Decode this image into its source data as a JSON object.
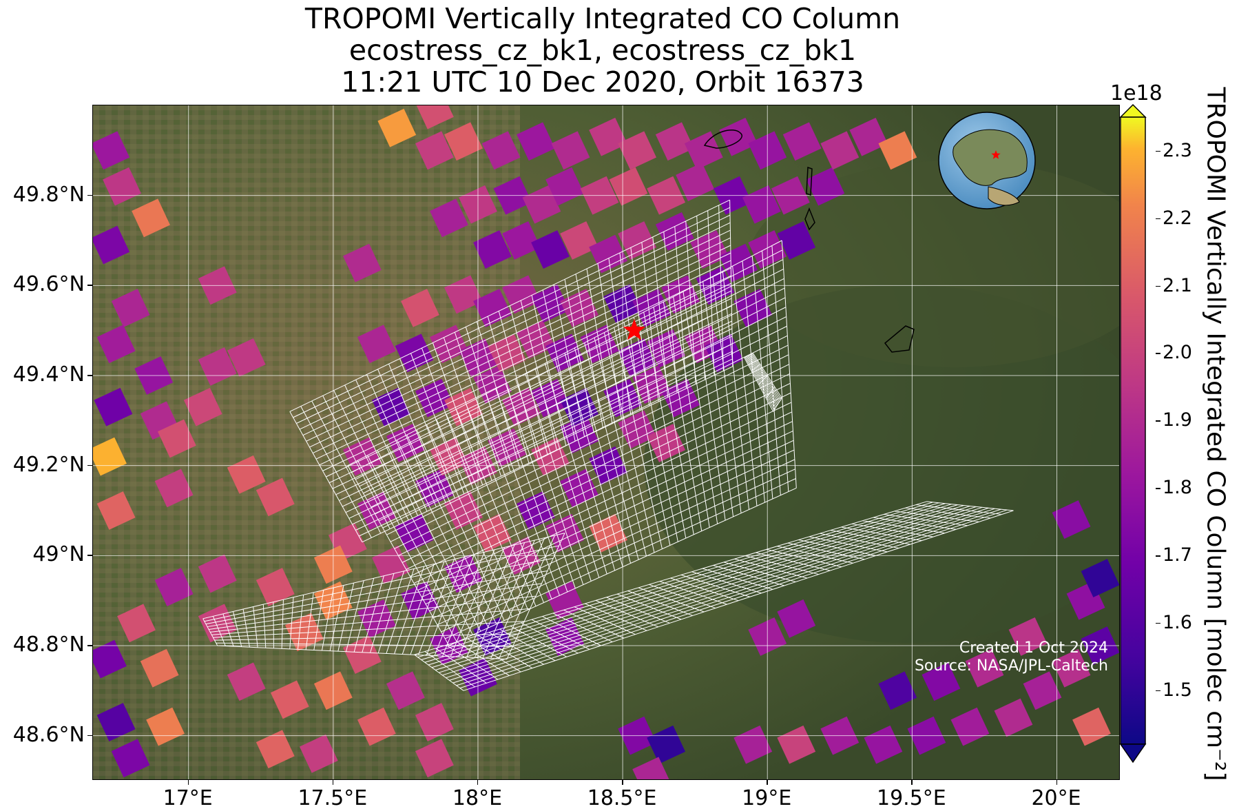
{
  "title": {
    "line1": "TROPOMI Vertically Integrated CO Column",
    "line2": "ecostress_cz_bk1, ecostress_cz_bk1",
    "line3": "11:21 UTC 10 Dec 2020, Orbit 16373"
  },
  "map": {
    "extent": {
      "lon_min": 16.67,
      "lon_max": 20.22,
      "lat_min": 48.5,
      "lat_max": 50.0
    },
    "lon_ticks": [
      {
        "value": 17.0,
        "label": "17°E"
      },
      {
        "value": 17.5,
        "label": "17.5°E"
      },
      {
        "value": 18.0,
        "label": "18°E"
      },
      {
        "value": 18.5,
        "label": "18.5°E"
      },
      {
        "value": 19.0,
        "label": "19°E"
      },
      {
        "value": 19.5,
        "label": "19.5°E"
      },
      {
        "value": 20.0,
        "label": "20°E"
      }
    ],
    "lat_ticks": [
      {
        "value": 48.6,
        "label": "48.6°N"
      },
      {
        "value": 48.8,
        "label": "48.8°N"
      },
      {
        "value": 49.0,
        "label": "49°N"
      },
      {
        "value": 49.2,
        "label": "49.2°N"
      },
      {
        "value": 49.4,
        "label": "49.4°N"
      },
      {
        "value": 49.6,
        "label": "49.6°N"
      },
      {
        "value": 49.8,
        "label": "49.8°N"
      }
    ],
    "target": {
      "lon": 18.54,
      "lat": 49.5,
      "color": "#ff0000"
    },
    "gridline_color": "#ffffff",
    "overlay_grid_color": "#ffffff",
    "credit_line1": "Created 1 Oct 2024",
    "credit_line2": "Source: NASA/JPL-Caltech",
    "inset_globe": {
      "target_color": "#ff0000"
    }
  },
  "colorbar": {
    "colormap": "plasma",
    "min": 1.42,
    "max": 2.35,
    "exponent_label": "1e18",
    "ticks": [
      {
        "value": 1.5,
        "label": "1.5"
      },
      {
        "value": 1.6,
        "label": "1.6"
      },
      {
        "value": 1.7,
        "label": "1.7"
      },
      {
        "value": 1.8,
        "label": "1.8"
      },
      {
        "value": 1.9,
        "label": "1.9"
      },
      {
        "value": 2.0,
        "label": "2.0"
      },
      {
        "value": 2.1,
        "label": "2.1"
      },
      {
        "value": 2.2,
        "label": "2.2"
      },
      {
        "value": 2.3,
        "label": "2.3"
      }
    ],
    "label": "TROPOMI Vertically Integrated CO Column [molec cm⁻²]",
    "extend": "both"
  },
  "co_pixels": [
    {
      "lon": 16.73,
      "lat": 49.9,
      "v": 1.82
    },
    {
      "lon": 16.77,
      "lat": 49.82,
      "v": 1.95
    },
    {
      "lon": 16.87,
      "lat": 49.75,
      "v": 2.18
    },
    {
      "lon": 16.73,
      "lat": 49.69,
      "v": 1.72
    },
    {
      "lon": 16.8,
      "lat": 49.55,
      "v": 1.88
    },
    {
      "lon": 16.75,
      "lat": 49.47,
      "v": 1.84
    },
    {
      "lon": 16.88,
      "lat": 49.4,
      "v": 1.8
    },
    {
      "lon": 16.74,
      "lat": 49.33,
      "v": 1.68
    },
    {
      "lon": 16.9,
      "lat": 49.3,
      "v": 1.9
    },
    {
      "lon": 16.72,
      "lat": 49.22,
      "v": 2.3
    },
    {
      "lon": 16.96,
      "lat": 49.26,
      "v": 2.05
    },
    {
      "lon": 17.05,
      "lat": 49.33,
      "v": 2.02
    },
    {
      "lon": 17.1,
      "lat": 49.42,
      "v": 1.94
    },
    {
      "lon": 17.2,
      "lat": 49.44,
      "v": 1.96
    },
    {
      "lon": 16.75,
      "lat": 49.1,
      "v": 2.12
    },
    {
      "lon": 16.95,
      "lat": 49.15,
      "v": 1.98
    },
    {
      "lon": 17.2,
      "lat": 49.18,
      "v": 2.1
    },
    {
      "lon": 17.1,
      "lat": 48.96,
      "v": 1.95
    },
    {
      "lon": 16.95,
      "lat": 48.93,
      "v": 1.86
    },
    {
      "lon": 16.82,
      "lat": 48.85,
      "v": 2.05
    },
    {
      "lon": 16.72,
      "lat": 48.77,
      "v": 1.7
    },
    {
      "lon": 16.9,
      "lat": 48.75,
      "v": 2.16
    },
    {
      "lon": 16.75,
      "lat": 48.63,
      "v": 1.6
    },
    {
      "lon": 16.92,
      "lat": 48.62,
      "v": 2.2
    },
    {
      "lon": 16.8,
      "lat": 48.55,
      "v": 1.72
    },
    {
      "lon": 17.1,
      "lat": 48.85,
      "v": 2.0
    },
    {
      "lon": 17.2,
      "lat": 48.72,
      "v": 1.98
    },
    {
      "lon": 17.3,
      "lat": 48.93,
      "v": 2.06
    },
    {
      "lon": 17.4,
      "lat": 48.83,
      "v": 2.14
    },
    {
      "lon": 17.5,
      "lat": 48.9,
      "v": 2.22
    },
    {
      "lon": 17.35,
      "lat": 48.68,
      "v": 2.1
    },
    {
      "lon": 17.5,
      "lat": 48.7,
      "v": 2.18
    },
    {
      "lon": 17.45,
      "lat": 48.56,
      "v": 1.98
    },
    {
      "lon": 17.3,
      "lat": 48.57,
      "v": 2.12
    },
    {
      "lon": 17.6,
      "lat": 48.78,
      "v": 2.05
    },
    {
      "lon": 17.65,
      "lat": 48.62,
      "v": 2.1
    },
    {
      "lon": 17.75,
      "lat": 48.7,
      "v": 1.92
    },
    {
      "lon": 17.85,
      "lat": 48.63,
      "v": 2.0
    },
    {
      "lon": 17.65,
      "lat": 48.86,
      "v": 1.84
    },
    {
      "lon": 17.8,
      "lat": 48.9,
      "v": 1.75
    },
    {
      "lon": 17.9,
      "lat": 48.8,
      "v": 1.78
    },
    {
      "lon": 18.0,
      "lat": 48.73,
      "v": 1.66
    },
    {
      "lon": 18.05,
      "lat": 48.82,
      "v": 1.58
    },
    {
      "lon": 17.95,
      "lat": 48.96,
      "v": 1.8
    },
    {
      "lon": 17.7,
      "lat": 48.98,
      "v": 1.96
    },
    {
      "lon": 17.55,
      "lat": 49.03,
      "v": 2.02
    },
    {
      "lon": 17.65,
      "lat": 49.1,
      "v": 1.86
    },
    {
      "lon": 17.78,
      "lat": 49.05,
      "v": 1.74
    },
    {
      "lon": 17.85,
      "lat": 49.15,
      "v": 1.78
    },
    {
      "lon": 17.95,
      "lat": 49.1,
      "v": 1.98
    },
    {
      "lon": 18.05,
      "lat": 49.05,
      "v": 2.06
    },
    {
      "lon": 18.15,
      "lat": 49.0,
      "v": 1.92
    },
    {
      "lon": 18.2,
      "lat": 49.1,
      "v": 1.72
    },
    {
      "lon": 18.3,
      "lat": 49.05,
      "v": 1.86
    },
    {
      "lon": 18.35,
      "lat": 49.15,
      "v": 1.8
    },
    {
      "lon": 18.3,
      "lat": 48.9,
      "v": 1.84
    },
    {
      "lon": 18.45,
      "lat": 49.05,
      "v": 2.12
    },
    {
      "lon": 17.6,
      "lat": 49.22,
      "v": 1.9
    },
    {
      "lon": 17.75,
      "lat": 49.25,
      "v": 1.84
    },
    {
      "lon": 17.9,
      "lat": 49.22,
      "v": 2.02
    },
    {
      "lon": 18.0,
      "lat": 49.2,
      "v": 1.94
    },
    {
      "lon": 18.1,
      "lat": 49.24,
      "v": 1.88
    },
    {
      "lon": 18.25,
      "lat": 49.22,
      "v": 2.0
    },
    {
      "lon": 18.35,
      "lat": 49.27,
      "v": 1.76
    },
    {
      "lon": 18.45,
      "lat": 49.2,
      "v": 1.68
    },
    {
      "lon": 18.55,
      "lat": 49.28,
      "v": 1.88
    },
    {
      "lon": 18.65,
      "lat": 49.25,
      "v": 1.96
    },
    {
      "lon": 17.7,
      "lat": 49.33,
      "v": 1.64
    },
    {
      "lon": 17.85,
      "lat": 49.35,
      "v": 1.76
    },
    {
      "lon": 17.95,
      "lat": 49.33,
      "v": 2.05
    },
    {
      "lon": 18.05,
      "lat": 49.38,
      "v": 1.86
    },
    {
      "lon": 18.15,
      "lat": 49.33,
      "v": 1.9
    },
    {
      "lon": 18.25,
      "lat": 49.35,
      "v": 1.78
    },
    {
      "lon": 18.35,
      "lat": 49.33,
      "v": 1.6
    },
    {
      "lon": 18.5,
      "lat": 49.35,
      "v": 1.72
    },
    {
      "lon": 18.6,
      "lat": 49.38,
      "v": 1.84
    },
    {
      "lon": 18.7,
      "lat": 49.35,
      "v": 1.78
    },
    {
      "lon": 17.78,
      "lat": 49.45,
      "v": 1.72
    },
    {
      "lon": 17.9,
      "lat": 49.47,
      "v": 1.9
    },
    {
      "lon": 18.0,
      "lat": 49.44,
      "v": 1.84
    },
    {
      "lon": 18.1,
      "lat": 49.45,
      "v": 2.0
    },
    {
      "lon": 18.2,
      "lat": 49.48,
      "v": 1.92
    },
    {
      "lon": 18.3,
      "lat": 49.45,
      "v": 1.76
    },
    {
      "lon": 18.42,
      "lat": 49.47,
      "v": 1.8
    },
    {
      "lon": 18.55,
      "lat": 49.44,
      "v": 1.74
    },
    {
      "lon": 18.65,
      "lat": 49.46,
      "v": 1.8
    },
    {
      "lon": 18.78,
      "lat": 49.47,
      "v": 1.84
    },
    {
      "lon": 18.85,
      "lat": 49.45,
      "v": 1.7
    },
    {
      "lon": 17.65,
      "lat": 49.47,
      "v": 1.88
    },
    {
      "lon": 17.8,
      "lat": 49.55,
      "v": 2.06
    },
    {
      "lon": 17.95,
      "lat": 49.58,
      "v": 1.96
    },
    {
      "lon": 18.05,
      "lat": 49.55,
      "v": 1.82
    },
    {
      "lon": 18.15,
      "lat": 49.58,
      "v": 1.88
    },
    {
      "lon": 18.25,
      "lat": 49.56,
      "v": 1.76
    },
    {
      "lon": 18.35,
      "lat": 49.55,
      "v": 1.9
    },
    {
      "lon": 18.5,
      "lat": 49.56,
      "v": 1.62
    },
    {
      "lon": 18.6,
      "lat": 49.55,
      "v": 1.76
    },
    {
      "lon": 18.7,
      "lat": 49.58,
      "v": 1.82
    },
    {
      "lon": 18.82,
      "lat": 49.6,
      "v": 1.72
    },
    {
      "lon": 18.95,
      "lat": 49.55,
      "v": 1.74
    },
    {
      "lon": 17.6,
      "lat": 49.65,
      "v": 1.9
    },
    {
      "lon": 18.05,
      "lat": 49.68,
      "v": 1.74
    },
    {
      "lon": 18.15,
      "lat": 49.7,
      "v": 1.82
    },
    {
      "lon": 18.25,
      "lat": 49.68,
      "v": 1.66
    },
    {
      "lon": 18.35,
      "lat": 49.7,
      "v": 2.02
    },
    {
      "lon": 18.45,
      "lat": 49.67,
      "v": 1.84
    },
    {
      "lon": 18.55,
      "lat": 49.7,
      "v": 1.94
    },
    {
      "lon": 18.68,
      "lat": 49.72,
      "v": 1.8
    },
    {
      "lon": 18.8,
      "lat": 49.68,
      "v": 1.86
    },
    {
      "lon": 18.9,
      "lat": 49.65,
      "v": 1.76
    },
    {
      "lon": 19.0,
      "lat": 49.68,
      "v": 1.82
    },
    {
      "lon": 19.1,
      "lat": 49.7,
      "v": 1.64
    },
    {
      "lon": 17.9,
      "lat": 49.75,
      "v": 1.86
    },
    {
      "lon": 18.0,
      "lat": 49.78,
      "v": 1.96
    },
    {
      "lon": 18.12,
      "lat": 49.8,
      "v": 1.78
    },
    {
      "lon": 18.22,
      "lat": 49.78,
      "v": 1.9
    },
    {
      "lon": 18.3,
      "lat": 49.82,
      "v": 1.84
    },
    {
      "lon": 18.42,
      "lat": 49.8,
      "v": 1.98
    },
    {
      "lon": 18.52,
      "lat": 49.82,
      "v": 2.04
    },
    {
      "lon": 18.65,
      "lat": 49.8,
      "v": 2.0
    },
    {
      "lon": 18.75,
      "lat": 49.83,
      "v": 1.88
    },
    {
      "lon": 18.88,
      "lat": 49.8,
      "v": 1.7
    },
    {
      "lon": 18.98,
      "lat": 49.78,
      "v": 1.8
    },
    {
      "lon": 19.08,
      "lat": 49.8,
      "v": 1.86
    },
    {
      "lon": 19.2,
      "lat": 49.82,
      "v": 1.78
    },
    {
      "lon": 17.85,
      "lat": 49.9,
      "v": 1.98
    },
    {
      "lon": 17.95,
      "lat": 49.92,
      "v": 2.1
    },
    {
      "lon": 18.08,
      "lat": 49.9,
      "v": 1.88
    },
    {
      "lon": 18.2,
      "lat": 49.92,
      "v": 1.82
    },
    {
      "lon": 18.32,
      "lat": 49.9,
      "v": 1.9
    },
    {
      "lon": 18.45,
      "lat": 49.93,
      "v": 1.96
    },
    {
      "lon": 18.55,
      "lat": 49.9,
      "v": 2.0
    },
    {
      "lon": 18.68,
      "lat": 49.92,
      "v": 1.94
    },
    {
      "lon": 18.78,
      "lat": 49.9,
      "v": 1.88
    },
    {
      "lon": 18.9,
      "lat": 49.93,
      "v": 1.84
    },
    {
      "lon": 19.0,
      "lat": 49.9,
      "v": 1.8
    },
    {
      "lon": 19.12,
      "lat": 49.92,
      "v": 1.86
    },
    {
      "lon": 19.25,
      "lat": 49.9,
      "v": 1.92
    },
    {
      "lon": 19.35,
      "lat": 49.93,
      "v": 1.88
    },
    {
      "lon": 19.45,
      "lat": 49.9,
      "v": 2.2
    },
    {
      "lon": 17.72,
      "lat": 49.95,
      "v": 2.26
    },
    {
      "lon": 17.85,
      "lat": 49.99,
      "v": 2.05
    },
    {
      "lon": 17.3,
      "lat": 49.13,
      "v": 2.08
    },
    {
      "lon": 17.5,
      "lat": 48.98,
      "v": 2.2
    },
    {
      "lon": 18.3,
      "lat": 48.82,
      "v": 1.76
    },
    {
      "lon": 19.1,
      "lat": 48.86,
      "v": 1.8
    },
    {
      "lon": 19.0,
      "lat": 48.82,
      "v": 1.84
    },
    {
      "lon": 18.55,
      "lat": 48.6,
      "v": 1.74
    },
    {
      "lon": 18.65,
      "lat": 48.58,
      "v": 1.5
    },
    {
      "lon": 18.95,
      "lat": 48.58,
      "v": 1.86
    },
    {
      "lon": 19.1,
      "lat": 48.58,
      "v": 2.0
    },
    {
      "lon": 19.25,
      "lat": 48.6,
      "v": 1.84
    },
    {
      "lon": 19.4,
      "lat": 48.58,
      "v": 1.8
    },
    {
      "lon": 19.55,
      "lat": 48.6,
      "v": 1.76
    },
    {
      "lon": 19.7,
      "lat": 48.62,
      "v": 1.84
    },
    {
      "lon": 19.85,
      "lat": 48.64,
      "v": 1.9
    },
    {
      "lon": 19.95,
      "lat": 48.7,
      "v": 1.86
    },
    {
      "lon": 20.05,
      "lat": 48.75,
      "v": 1.92
    },
    {
      "lon": 20.15,
      "lat": 48.8,
      "v": 1.62
    },
    {
      "lon": 20.1,
      "lat": 48.9,
      "v": 1.78
    },
    {
      "lon": 20.15,
      "lat": 48.95,
      "v": 1.5
    },
    {
      "lon": 20.05,
      "lat": 49.08,
      "v": 1.76
    },
    {
      "lon": 19.45,
      "lat": 48.7,
      "v": 1.58
    },
    {
      "lon": 19.6,
      "lat": 48.72,
      "v": 1.74
    },
    {
      "lon": 19.75,
      "lat": 48.75,
      "v": 1.9
    },
    {
      "lon": 19.9,
      "lat": 48.82,
      "v": 1.94
    },
    {
      "lon": 20.12,
      "lat": 48.62,
      "v": 2.12
    },
    {
      "lon": 17.85,
      "lat": 48.55,
      "v": 2.0
    },
    {
      "lon": 18.6,
      "lat": 48.51,
      "v": 1.88
    },
    {
      "lon": 17.1,
      "lat": 49.6,
      "v": 1.96
    }
  ]
}
